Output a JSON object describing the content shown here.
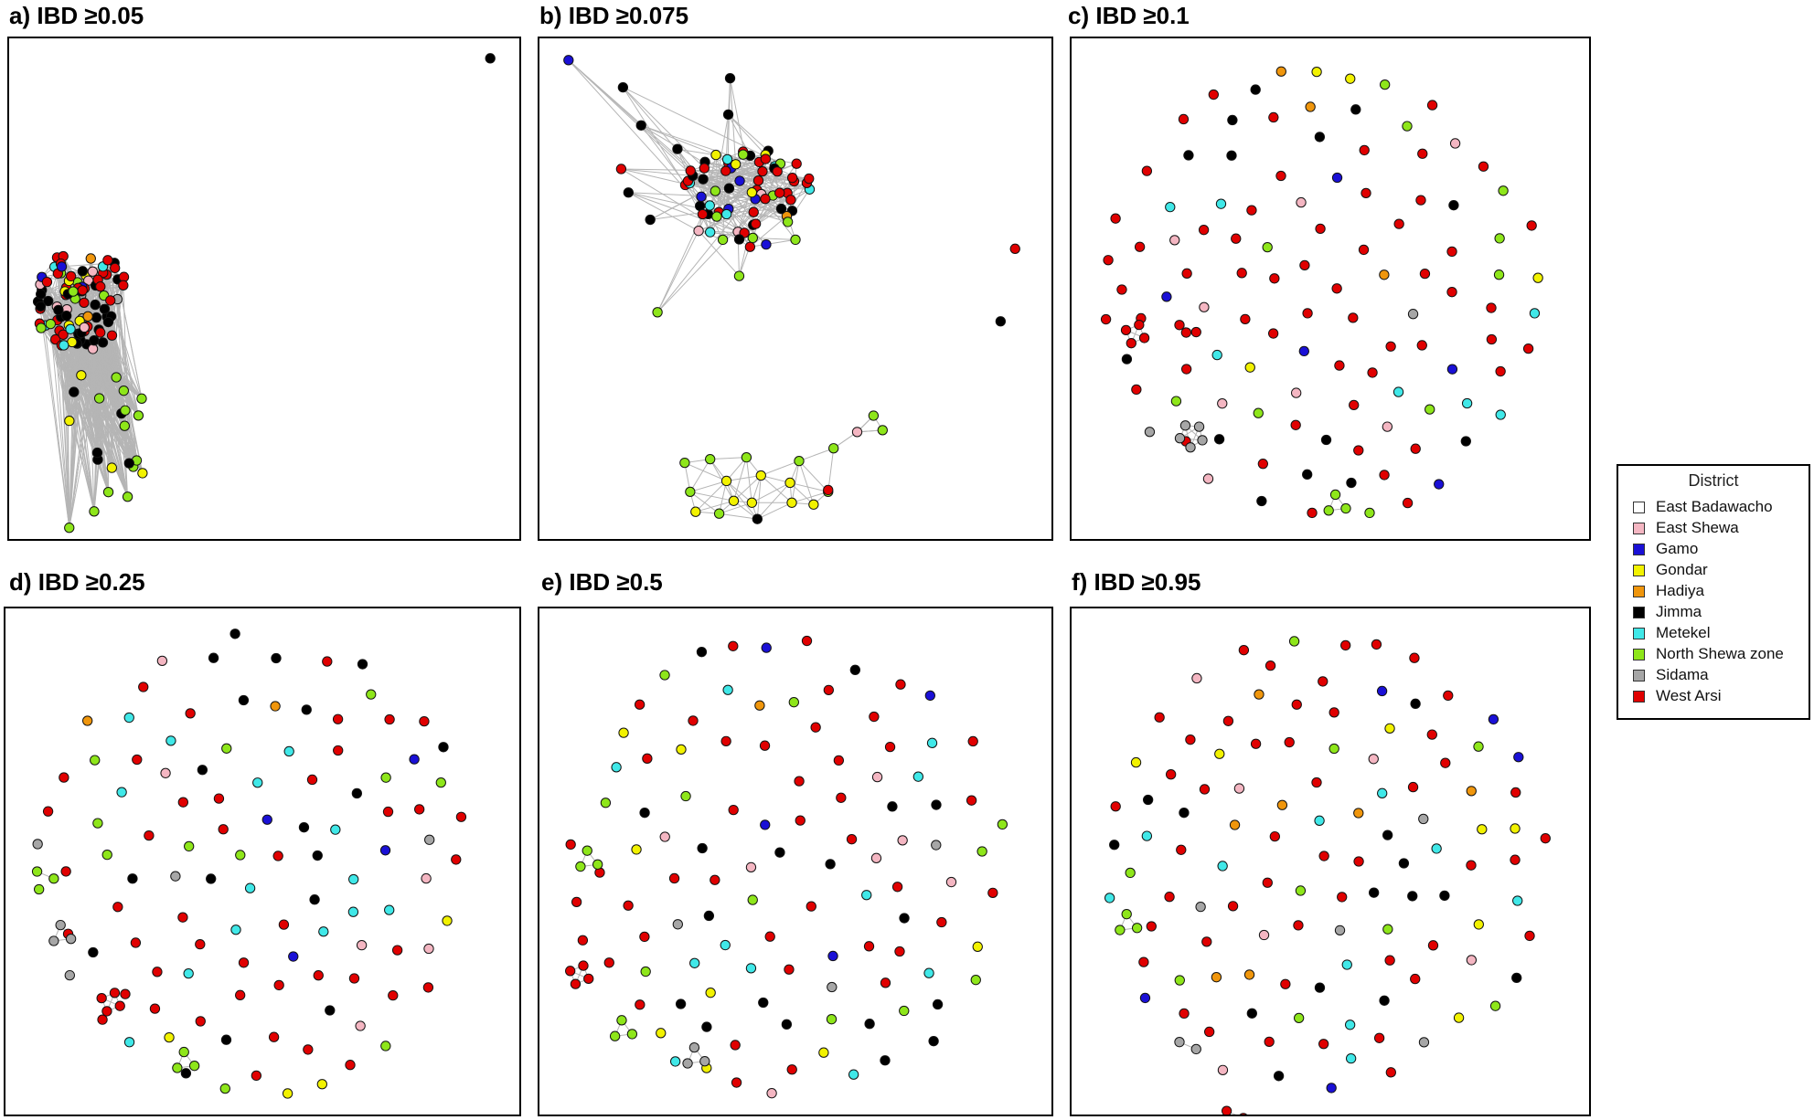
{
  "figure": {
    "panels": [
      {
        "id": "a",
        "title": "a) IBD ≥0.05"
      },
      {
        "id": "b",
        "title": "b) IBD ≥0.075"
      },
      {
        "id": "c",
        "title": "c) IBD ≥0.1"
      },
      {
        "id": "d",
        "title": "d) IBD ≥0.25"
      },
      {
        "id": "e",
        "title": "e) IBD ≥0.5"
      },
      {
        "id": "f",
        "title": "f) IBD ≥0.95"
      }
    ]
  },
  "legend": {
    "title": "District",
    "items": [
      {
        "label": "East Badawacho",
        "color": "#ffffff"
      },
      {
        "label": "East Shewa",
        "color": "#f4b6c2"
      },
      {
        "label": "Gamo",
        "color": "#1a10d6"
      },
      {
        "label": "Gondar",
        "color": "#f2f200"
      },
      {
        "label": "Hadiya",
        "color": "#f0960c"
      },
      {
        "label": "Jimma",
        "color": "#000000"
      },
      {
        "label": "Metekel",
        "color": "#40e8e8"
      },
      {
        "label": "North Shewa zone",
        "color": "#8ee61a"
      },
      {
        "label": "Sidama",
        "color": "#a6a6a6"
      },
      {
        "label": "West Arsi",
        "color": "#e00000"
      }
    ]
  },
  "chart_data": {
    "type": "network",
    "description_of_values": "Network plots of parasite isolates connected by pairwise IBD above each threshold; node colour = district",
    "thresholds": [
      0.05,
      0.075,
      0.1,
      0.25,
      0.5,
      0.95
    ],
    "node_color_key": "District"
  }
}
